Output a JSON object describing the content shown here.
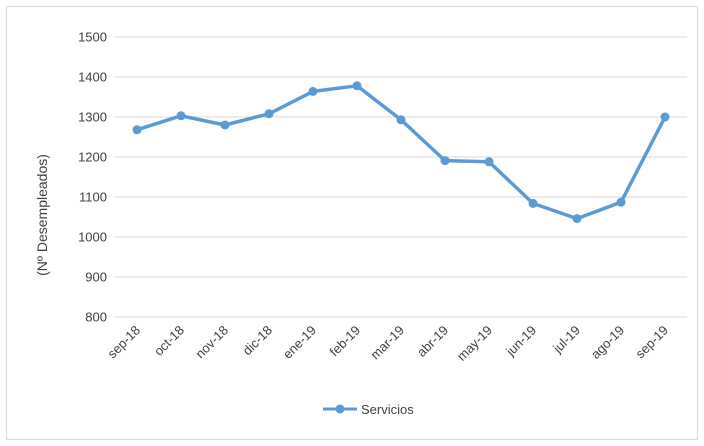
{
  "chart_data": {
    "type": "line",
    "categories": [
      "sep-18",
      "oct-18",
      "nov-18",
      "dic-18",
      "ene-19",
      "feb-19",
      "mar-19",
      "abr-19",
      "may-19",
      "jun-19",
      "jul-19",
      "ago-19",
      "sep-19"
    ],
    "series": [
      {
        "name": "Servicios",
        "values": [
          1268,
          1303,
          1280,
          1308,
          1364,
          1378,
          1293,
          1191,
          1188,
          1084,
          1046,
          1087,
          1300
        ],
        "color": "#5b9bd5"
      }
    ],
    "ylabel": "(Nº Desempleados)",
    "xlabel": "",
    "ylim": [
      800,
      1500
    ],
    "yticks": [
      800,
      900,
      1000,
      1100,
      1200,
      1300,
      1400,
      1500
    ],
    "grid": true,
    "legend_position": "bottom"
  }
}
